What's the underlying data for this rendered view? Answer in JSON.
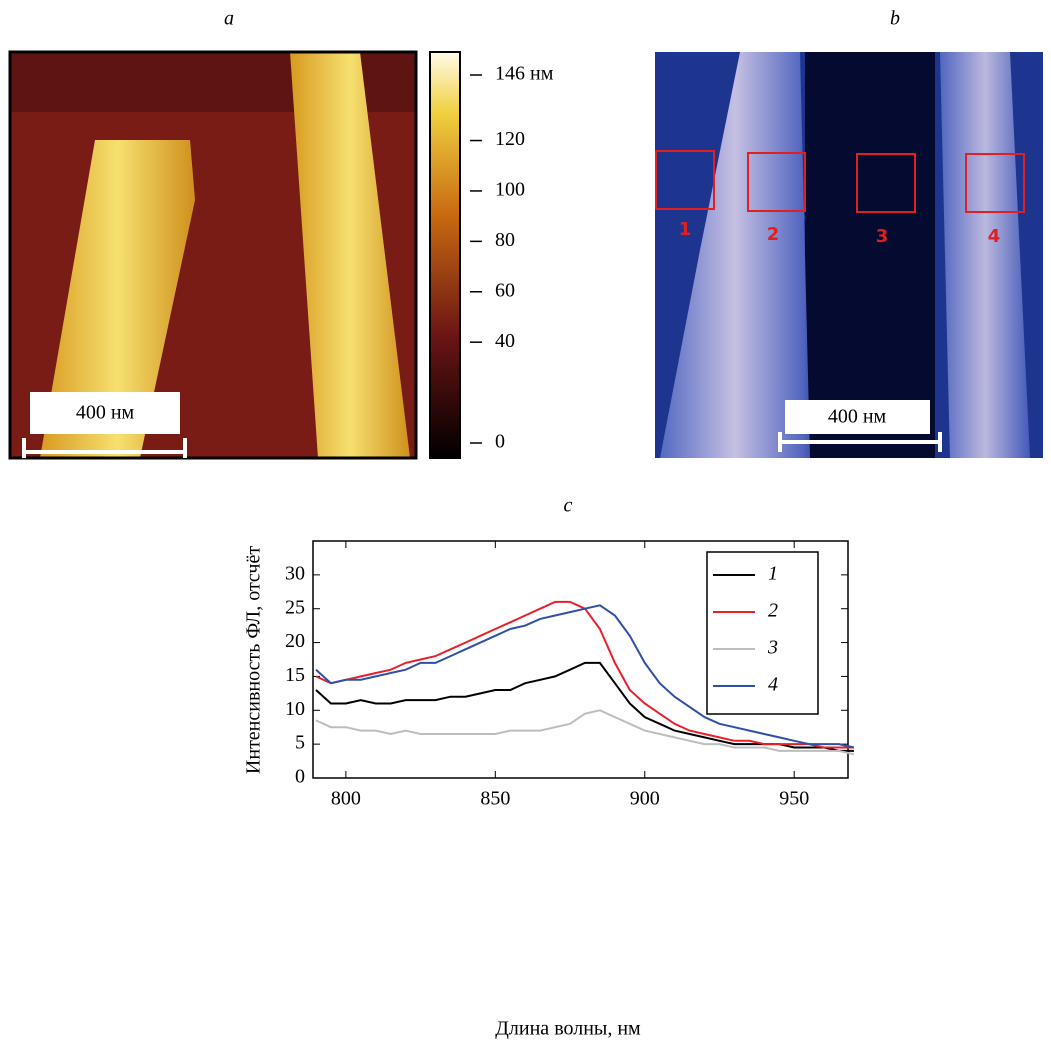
{
  "chart_data": [
    {
      "type": "heatmap",
      "title": "a",
      "scale_bar": "400 нм",
      "clim": [
        0,
        146
      ],
      "colorbar_ticks": [
        {
          "value": 146,
          "label": "146 нм"
        },
        120,
        100,
        80,
        60,
        40,
        0
      ]
    },
    {
      "type": "image",
      "title": "b",
      "scale_bar": "400 нм",
      "regions": [
        "1",
        "2",
        "3",
        "4"
      ]
    },
    {
      "type": "line",
      "title": "c",
      "xlabel": "Длина волны, нм",
      "ylabel": "Интенсивность ФЛ, отсчёт",
      "xlim": [
        789,
        968
      ],
      "ylim": [
        0,
        35
      ],
      "xticks": [
        800,
        850,
        900,
        950
      ],
      "yticks": [
        0,
        5,
        10,
        15,
        20,
        25,
        30
      ],
      "x": [
        790,
        795,
        800,
        805,
        810,
        815,
        820,
        825,
        830,
        835,
        840,
        845,
        850,
        855,
        860,
        865,
        870,
        875,
        880,
        885,
        890,
        895,
        900,
        905,
        910,
        915,
        920,
        925,
        930,
        935,
        940,
        945,
        950,
        955,
        960,
        965,
        970
      ],
      "series": [
        {
          "name": "1",
          "color": "#000000",
          "values": [
            13,
            11,
            11,
            11.5,
            11,
            11,
            11.5,
            11.5,
            11.5,
            12,
            12,
            12.5,
            13,
            13,
            14,
            14.5,
            15,
            16,
            17,
            17,
            14,
            11,
            9,
            8,
            7,
            6.5,
            6,
            5.5,
            5,
            5,
            5,
            5,
            4.5,
            4.5,
            4.5,
            4,
            4
          ]
        },
        {
          "name": "2",
          "color": "#e8202a",
          "values": [
            15,
            14,
            14.5,
            15,
            15.5,
            16,
            17,
            17.5,
            18,
            19,
            20,
            21,
            22,
            23,
            24,
            25,
            26,
            26,
            25,
            22,
            17,
            13,
            11,
            9.5,
            8,
            7,
            6.5,
            6,
            5.5,
            5.5,
            5,
            5,
            5,
            5,
            4.5,
            4.5,
            4.5
          ]
        },
        {
          "name": "3",
          "color": "#bdbdbd",
          "values": [
            8.5,
            7.5,
            7.5,
            7,
            7,
            6.5,
            7,
            6.5,
            6.5,
            6.5,
            6.5,
            6.5,
            6.5,
            7,
            7,
            7,
            7.5,
            8,
            9.5,
            10,
            9,
            8,
            7,
            6.5,
            6,
            5.5,
            5,
            5,
            4.5,
            4.5,
            4.5,
            4,
            4,
            4,
            4,
            4,
            3.5
          ]
        },
        {
          "name": "4",
          "color": "#2f4fa8",
          "values": [
            16,
            14,
            14.5,
            14.5,
            15,
            15.5,
            16,
            17,
            17,
            18,
            19,
            20,
            21,
            22,
            22.5,
            23.5,
            24,
            24.5,
            25,
            25.5,
            24,
            21,
            17,
            14,
            12,
            10.5,
            9,
            8,
            7.5,
            7,
            6.5,
            6,
            5.5,
            5,
            5,
            5,
            4.5
          ]
        }
      ]
    }
  ]
}
